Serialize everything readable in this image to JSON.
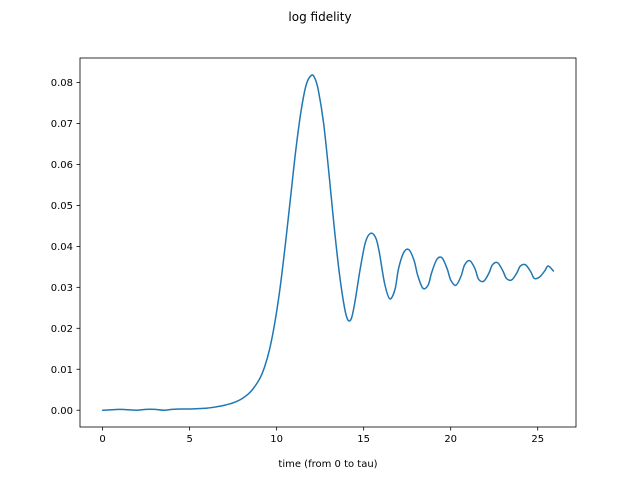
{
  "chart_data": {
    "type": "line",
    "title": "log fidelity",
    "xlabel": "time (from 0 to tau)",
    "ylabel": "",
    "xlim": [
      -1.3,
      27.2
    ],
    "ylim": [
      -0.0041,
      0.086
    ],
    "xticks": [
      0,
      5,
      10,
      15,
      20,
      25
    ],
    "xtick_labels": [
      "0",
      "5",
      "10",
      "15",
      "20",
      "25"
    ],
    "yticks": [
      0.0,
      0.01,
      0.02,
      0.03,
      0.04,
      0.05,
      0.06,
      0.07,
      0.08
    ],
    "ytick_labels": [
      "0.00",
      "0.01",
      "0.02",
      "0.03",
      "0.04",
      "0.05",
      "0.06",
      "0.07",
      "0.08"
    ],
    "grid": false,
    "legend": "none",
    "series": [
      {
        "color": "#1f77b4",
        "x": [
          0,
          0.5,
          1.0,
          1.5,
          2.0,
          2.5,
          3.0,
          3.5,
          4.0,
          4.5,
          5.0,
          5.5,
          6.0,
          6.5,
          7.0,
          7.5,
          8.0,
          8.5,
          9.0,
          9.3,
          9.6,
          9.9,
          10.2,
          10.5,
          10.8,
          11.1,
          11.4,
          11.7,
          12.0,
          12.2,
          12.4,
          12.7,
          13.0,
          13.3,
          13.6,
          13.9,
          14.1,
          14.3,
          14.5,
          14.8,
          15.1,
          15.4,
          15.7,
          15.9,
          16.2,
          16.5,
          16.8,
          17.0,
          17.3,
          17.6,
          17.9,
          18.1,
          18.4,
          18.7,
          18.9,
          19.2,
          19.5,
          19.8,
          20.0,
          20.3,
          20.6,
          20.8,
          21.1,
          21.4,
          21.6,
          21.9,
          22.2,
          22.4,
          22.7,
          23.0,
          23.2,
          23.5,
          23.8,
          24.0,
          24.3,
          24.6,
          24.8,
          25.1,
          25.4,
          25.6,
          25.9
        ],
        "y": [
          0.0,
          0.0001,
          0.0002,
          0.0001,
          0.0,
          0.0002,
          0.0002,
          0.0,
          0.0002,
          0.0003,
          0.0003,
          0.0004,
          0.0005,
          0.0008,
          0.0012,
          0.0018,
          0.0028,
          0.0045,
          0.0075,
          0.0105,
          0.015,
          0.0215,
          0.03,
          0.0405,
          0.052,
          0.0635,
          0.073,
          0.0795,
          0.0818,
          0.081,
          0.078,
          0.07,
          0.058,
          0.045,
          0.0335,
          0.025,
          0.022,
          0.0225,
          0.0265,
          0.0345,
          0.041,
          0.0432,
          0.042,
          0.0385,
          0.031,
          0.0272,
          0.0295,
          0.0345,
          0.0385,
          0.0392,
          0.0365,
          0.033,
          0.0298,
          0.0305,
          0.0335,
          0.0368,
          0.0372,
          0.0345,
          0.0318,
          0.0305,
          0.0328,
          0.0355,
          0.0365,
          0.0345,
          0.032,
          0.0315,
          0.0335,
          0.0355,
          0.036,
          0.034,
          0.0322,
          0.0318,
          0.0335,
          0.0352,
          0.0355,
          0.0338,
          0.0322,
          0.0325,
          0.034,
          0.0352,
          0.034
        ]
      }
    ]
  }
}
